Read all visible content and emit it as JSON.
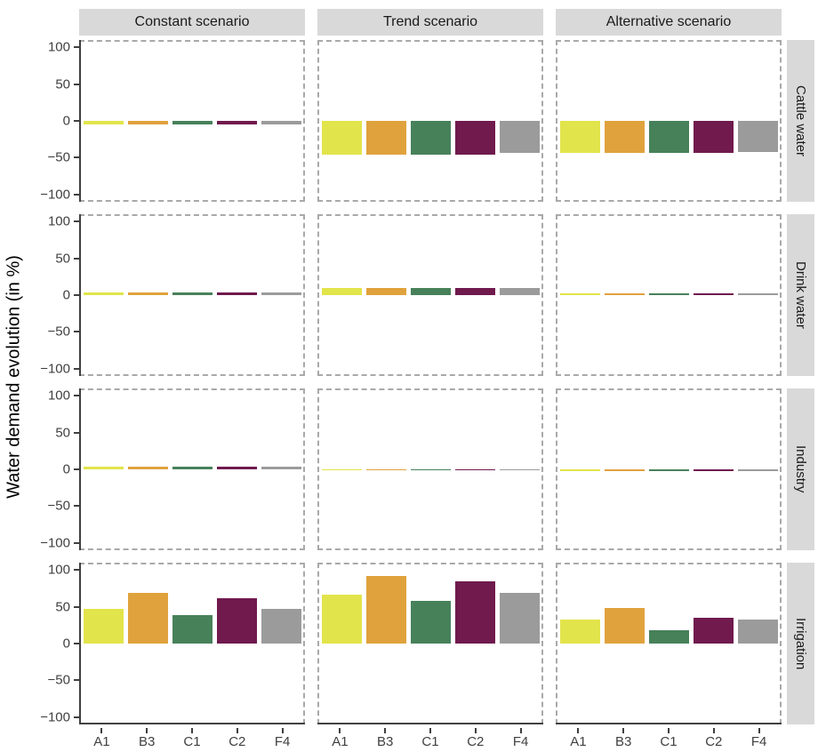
{
  "y_axis_title": "Water demand evolution (in %)",
  "colors": {
    "strip_background": "#d9d9d9",
    "axis_line": "#404040",
    "tick_label": "#404040",
    "panel_border": "#a9a9a9"
  },
  "chart_data": {
    "type": "bar",
    "title": "",
    "xlabel": "",
    "ylabel": "Water demand evolution (in %)",
    "facet_columns": [
      "Constant scenario",
      "Trend scenario",
      "Alternative scenario"
    ],
    "facet_rows": [
      "Cattle water",
      "Drink water",
      "Industry",
      "Irrigation"
    ],
    "categories": [
      "A1",
      "B3",
      "C1",
      "C2",
      "F4"
    ],
    "palette": {
      "A1": "#e2e44b",
      "B3": "#e0a23d",
      "C1": "#47815a",
      "C2": "#701a4e",
      "F4": "#9b9b9b"
    },
    "ylim": [
      -110,
      110
    ],
    "grid": "off",
    "legend": "none",
    "yticks": [
      {
        "value": 100,
        "label": "100"
      },
      {
        "value": 50,
        "label": "50"
      },
      {
        "value": 0,
        "label": "0"
      },
      {
        "value": -50,
        "label": "−50"
      },
      {
        "value": -100,
        "label": "−100"
      }
    ],
    "panels": [
      {
        "row": "Cattle water",
        "column": "Constant scenario",
        "values": [
          -5,
          -5,
          -5,
          -5,
          -5
        ]
      },
      {
        "row": "Cattle water",
        "column": "Trend scenario",
        "values": [
          -47,
          -47,
          -47,
          -47,
          -45
        ]
      },
      {
        "row": "Cattle water",
        "column": "Alternative scenario",
        "values": [
          -44,
          -44,
          -44,
          -44,
          -43
        ]
      },
      {
        "row": "Drink water",
        "column": "Constant scenario",
        "values": [
          4,
          4,
          4,
          4,
          4
        ]
      },
      {
        "row": "Drink water",
        "column": "Trend scenario",
        "values": [
          10,
          10,
          10,
          10,
          10
        ]
      },
      {
        "row": "Drink water",
        "column": "Alternative scenario",
        "values": [
          2,
          2,
          2,
          2,
          2
        ]
      },
      {
        "row": "Industry",
        "column": "Constant scenario",
        "values": [
          4,
          4,
          4,
          4,
          4
        ]
      },
      {
        "row": "Industry",
        "column": "Trend scenario",
        "values": [
          -1,
          -1,
          -1,
          -1,
          -1
        ]
      },
      {
        "row": "Industry",
        "column": "Alternative scenario",
        "values": [
          -2,
          -2,
          -2,
          -2,
          -2
        ]
      },
      {
        "row": "Irrigation",
        "column": "Constant scenario",
        "values": [
          48,
          70,
          40,
          63,
          48
        ]
      },
      {
        "row": "Irrigation",
        "column": "Trend scenario",
        "values": [
          68,
          94,
          59,
          86,
          70
        ]
      },
      {
        "row": "Irrigation",
        "column": "Alternative scenario",
        "values": [
          33,
          50,
          19,
          36,
          33
        ]
      }
    ]
  }
}
